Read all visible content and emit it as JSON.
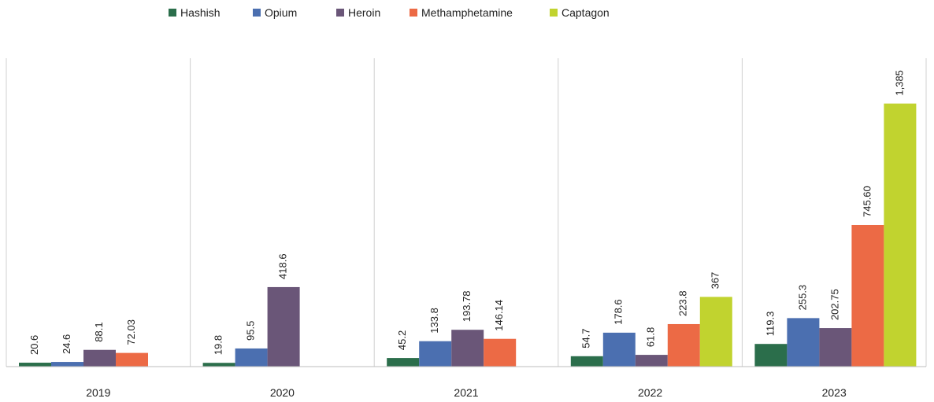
{
  "chart_data": {
    "type": "bar",
    "title": "",
    "xlabel": "",
    "ylabel": "",
    "ylim": [
      0,
      1400
    ],
    "grid": false,
    "legend_position": "top-left",
    "categories": [
      "2019",
      "2020",
      "2021",
      "2022",
      "2023"
    ],
    "series": [
      {
        "name": "Hashish",
        "color": "#2B6E4B",
        "values": [
          20.6,
          19.8,
          45.2,
          54.7,
          119.3
        ],
        "labels": [
          "20.6",
          "19.8",
          "45.2",
          "54.7",
          "119.3"
        ]
      },
      {
        "name": "Opium",
        "color": "#4B6FB0",
        "values": [
          24.6,
          95.5,
          133.8,
          178.6,
          255.3
        ],
        "labels": [
          "24.6",
          "95.5",
          "133.8",
          "178.6",
          "255.3"
        ]
      },
      {
        "name": "Heroin",
        "color": "#6A5678",
        "values": [
          88.1,
          418.6,
          193.78,
          61.8,
          202.75
        ],
        "labels": [
          "88.1",
          "418.6",
          "193.78",
          "61.8",
          "202.75"
        ]
      },
      {
        "name": "Methamphetamine",
        "color": "#EC6A45",
        "values": [
          72.03,
          null,
          146.14,
          223.8,
          745.6
        ],
        "labels": [
          "72.03",
          "",
          "146.14",
          "223.8",
          "745.60"
        ]
      },
      {
        "name": "Captagon",
        "color": "#C1D32F",
        "values": [
          null,
          null,
          null,
          367,
          1385
        ],
        "labels": [
          "",
          "",
          "",
          "367",
          "1,385"
        ]
      }
    ]
  }
}
